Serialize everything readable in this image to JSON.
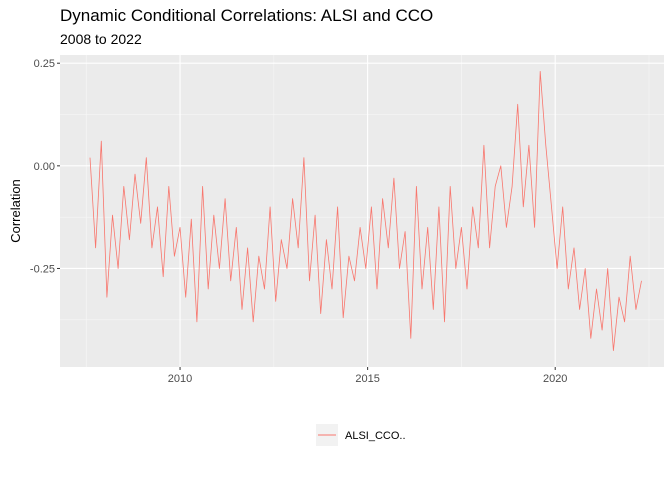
{
  "chart_data": {
    "type": "line",
    "title": "Dynamic Conditional Correlations: ALSI and CCO",
    "subtitle": "2008 to 2022",
    "xlabel": "",
    "ylabel": "Correlation",
    "x_ticks": [
      "2010",
      "2015",
      "2020"
    ],
    "y_ticks": [
      "0.25",
      "0.00",
      "-0.25"
    ],
    "xlim": [
      2006.8,
      2022.9
    ],
    "ylim": [
      -0.49,
      0.27
    ],
    "grid": true,
    "legend_position": "bottom",
    "series": [
      {
        "name": "ALSI_CCO..",
        "color": "#F8766D",
        "x": [
          2007.6,
          2007.75,
          2007.9,
          2008.05,
          2008.2,
          2008.35,
          2008.5,
          2008.65,
          2008.8,
          2008.95,
          2009.1,
          2009.25,
          2009.4,
          2009.55,
          2009.7,
          2009.85,
          2010.0,
          2010.15,
          2010.3,
          2010.45,
          2010.6,
          2010.75,
          2010.9,
          2011.05,
          2011.2,
          2011.35,
          2011.5,
          2011.65,
          2011.8,
          2011.95,
          2012.1,
          2012.25,
          2012.4,
          2012.55,
          2012.7,
          2012.85,
          2013.0,
          2013.15,
          2013.3,
          2013.45,
          2013.6,
          2013.75,
          2013.9,
          2014.05,
          2014.2,
          2014.35,
          2014.5,
          2014.65,
          2014.8,
          2014.95,
          2015.1,
          2015.25,
          2015.4,
          2015.55,
          2015.7,
          2015.85,
          2016.0,
          2016.15,
          2016.3,
          2016.45,
          2016.6,
          2016.75,
          2016.9,
          2017.05,
          2017.2,
          2017.35,
          2017.5,
          2017.65,
          2017.8,
          2017.95,
          2018.1,
          2018.25,
          2018.4,
          2018.55,
          2018.7,
          2018.85,
          2019.0,
          2019.15,
          2019.3,
          2019.45,
          2019.6,
          2019.75,
          2019.9,
          2020.05,
          2020.2,
          2020.35,
          2020.5,
          2020.65,
          2020.8,
          2020.95,
          2021.1,
          2021.25,
          2021.4,
          2021.55,
          2021.7,
          2021.85,
          2022.0,
          2022.15,
          2022.3
        ],
        "values": [
          0.02,
          -0.2,
          0.06,
          -0.32,
          -0.12,
          -0.25,
          -0.05,
          -0.18,
          -0.02,
          -0.14,
          0.02,
          -0.2,
          -0.1,
          -0.27,
          -0.05,
          -0.22,
          -0.15,
          -0.32,
          -0.13,
          -0.38,
          -0.05,
          -0.3,
          -0.12,
          -0.25,
          -0.08,
          -0.28,
          -0.15,
          -0.35,
          -0.2,
          -0.38,
          -0.22,
          -0.3,
          -0.1,
          -0.33,
          -0.18,
          -0.25,
          -0.08,
          -0.2,
          0.02,
          -0.28,
          -0.12,
          -0.36,
          -0.18,
          -0.3,
          -0.1,
          -0.37,
          -0.22,
          -0.28,
          -0.15,
          -0.25,
          -0.1,
          -0.3,
          -0.08,
          -0.2,
          -0.03,
          -0.25,
          -0.16,
          -0.42,
          -0.05,
          -0.3,
          -0.15,
          -0.35,
          -0.1,
          -0.38,
          -0.05,
          -0.25,
          -0.15,
          -0.3,
          -0.1,
          -0.2,
          0.05,
          -0.2,
          -0.05,
          0.0,
          -0.15,
          -0.05,
          0.15,
          -0.1,
          0.05,
          -0.15,
          0.23,
          0.05,
          -0.1,
          -0.25,
          -0.1,
          -0.3,
          -0.2,
          -0.35,
          -0.25,
          -0.42,
          -0.3,
          -0.4,
          -0.25,
          -0.45,
          -0.32,
          -0.38,
          -0.22,
          -0.35,
          -0.28
        ]
      }
    ]
  }
}
